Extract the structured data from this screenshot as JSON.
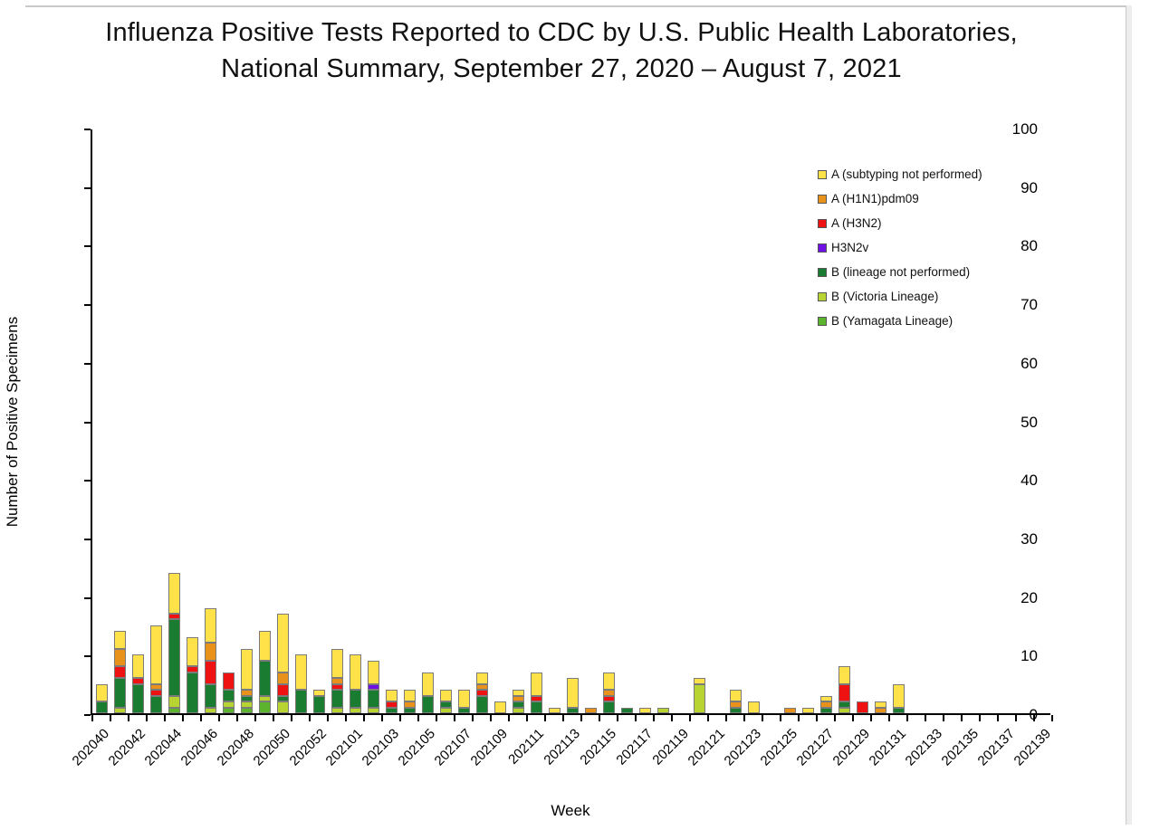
{
  "page": {
    "title_line1": "Influenza Positive Tests Reported to CDC by U.S. Public Health Laboratories,",
    "title_line2": "National Summary, September 27, 2020 – August 7, 2021"
  },
  "chart_data": {
    "type": "bar",
    "stacked": true,
    "title": "Influenza Positive Tests Reported to CDC by U.S. Public Health Laboratories, National Summary, September 27, 2020 – August 7, 2021",
    "xlabel": "Week",
    "ylabel": "Number of Positive Specimens",
    "ylim": [
      0,
      100
    ],
    "ytick_interval": 10,
    "grid": false,
    "legend_position": "upper-right",
    "x_label_every": 2,
    "stack_order_bottom_to_top": [
      "B (Yamagata Lineage)",
      "B (Victoria Lineage)",
      "B (lineage not performed)",
      "H3N2v",
      "A (H3N2)",
      "A (H1N1)pdm09",
      "A (subtyping not performed)"
    ],
    "categories": [
      "202040",
      "202041",
      "202042",
      "202043",
      "202044",
      "202045",
      "202046",
      "202047",
      "202048",
      "202049",
      "202050",
      "202051",
      "202052",
      "202053",
      "202101",
      "202102",
      "202103",
      "202104",
      "202105",
      "202106",
      "202107",
      "202108",
      "202109",
      "202110",
      "202111",
      "202112",
      "202113",
      "202114",
      "202115",
      "202116",
      "202117",
      "202118",
      "202119",
      "202120",
      "202121",
      "202122",
      "202123",
      "202124",
      "202125",
      "202126",
      "202127",
      "202128",
      "202129",
      "202130",
      "202131",
      "202132",
      "202133",
      "202134",
      "202135",
      "202136",
      "202137",
      "202138",
      "202139"
    ],
    "series": [
      {
        "name": "A (subtyping not performed)",
        "color": "#FFE24A",
        "values": [
          3,
          3,
          4,
          10,
          7,
          5,
          6,
          0,
          7,
          5,
          10,
          6,
          1,
          5,
          6,
          4,
          2,
          2,
          4,
          2,
          3,
          2,
          2,
          1,
          4,
          1,
          5,
          0,
          3,
          0,
          1,
          0,
          0,
          1,
          0,
          2,
          2,
          0,
          0,
          1,
          1,
          3,
          0,
          1,
          4,
          0,
          0,
          0,
          0,
          0,
          0,
          0,
          0
        ]
      },
      {
        "name": "A (H1N1)pdm09",
        "color": "#E8921B",
        "values": [
          0,
          3,
          0,
          1,
          0,
          0,
          3,
          0,
          1,
          0,
          2,
          0,
          0,
          1,
          0,
          0,
          0,
          1,
          0,
          0,
          0,
          1,
          0,
          1,
          0,
          0,
          0,
          1,
          1,
          0,
          0,
          0,
          0,
          0,
          0,
          1,
          0,
          0,
          1,
          0,
          1,
          0,
          0,
          1,
          0,
          0,
          0,
          0,
          0,
          0,
          0,
          0,
          0
        ]
      },
      {
        "name": "A (H3N2)",
        "color": "#EE1212",
        "values": [
          0,
          2,
          1,
          1,
          1,
          1,
          4,
          3,
          0,
          0,
          2,
          0,
          0,
          1,
          0,
          0,
          1,
          0,
          0,
          0,
          0,
          1,
          0,
          0,
          1,
          0,
          0,
          0,
          1,
          0,
          0,
          0,
          0,
          0,
          0,
          0,
          0,
          0,
          0,
          0,
          0,
          3,
          2,
          0,
          0,
          0,
          0,
          0,
          0,
          0,
          0,
          0,
          0
        ]
      },
      {
        "name": "H3N2v",
        "color": "#6F10E8",
        "values": [
          0,
          0,
          0,
          0,
          0,
          0,
          0,
          0,
          0,
          0,
          0,
          0,
          0,
          0,
          0,
          1,
          0,
          0,
          0,
          0,
          0,
          0,
          0,
          0,
          0,
          0,
          0,
          0,
          0,
          0,
          0,
          0,
          0,
          0,
          0,
          0,
          0,
          0,
          0,
          0,
          0,
          0,
          0,
          0,
          0,
          0,
          0,
          0,
          0,
          0,
          0,
          0,
          0
        ]
      },
      {
        "name": "B (lineage not performed)",
        "color": "#1A7C30",
        "values": [
          2,
          5,
          5,
          3,
          13,
          7,
          4,
          2,
          1,
          6,
          1,
          4,
          3,
          3,
          3,
          3,
          1,
          1,
          3,
          1,
          1,
          3,
          0,
          1,
          2,
          0,
          1,
          0,
          2,
          1,
          0,
          0,
          0,
          0,
          0,
          1,
          0,
          0,
          0,
          0,
          1,
          1,
          0,
          0,
          1,
          0,
          0,
          0,
          0,
          0,
          0,
          0,
          0
        ]
      },
      {
        "name": "B (Victoria Lineage)",
        "color": "#B8D432",
        "values": [
          0,
          1,
          0,
          0,
          2,
          0,
          1,
          1,
          1,
          1,
          2,
          0,
          0,
          1,
          1,
          1,
          0,
          0,
          0,
          1,
          0,
          0,
          0,
          1,
          0,
          0,
          0,
          0,
          0,
          0,
          0,
          1,
          0,
          5,
          0,
          0,
          0,
          0,
          0,
          0,
          0,
          1,
          0,
          0,
          0,
          0,
          0,
          0,
          0,
          0,
          0,
          0,
          0
        ]
      },
      {
        "name": "B (Yamagata Lineage)",
        "color": "#5BB32E",
        "values": [
          0,
          0,
          0,
          0,
          1,
          0,
          0,
          1,
          1,
          2,
          0,
          0,
          0,
          0,
          0,
          0,
          0,
          0,
          0,
          0,
          0,
          0,
          0,
          0,
          0,
          0,
          0,
          0,
          0,
          0,
          0,
          0,
          0,
          0,
          0,
          0,
          0,
          0,
          0,
          0,
          0,
          0,
          0,
          0,
          0,
          0,
          0,
          0,
          0,
          0,
          0,
          0,
          0
        ]
      }
    ],
    "ytick_labels": [
      "0",
      "10",
      "20",
      "30",
      "40",
      "50",
      "60",
      "70",
      "80",
      "90",
      "100"
    ]
  }
}
